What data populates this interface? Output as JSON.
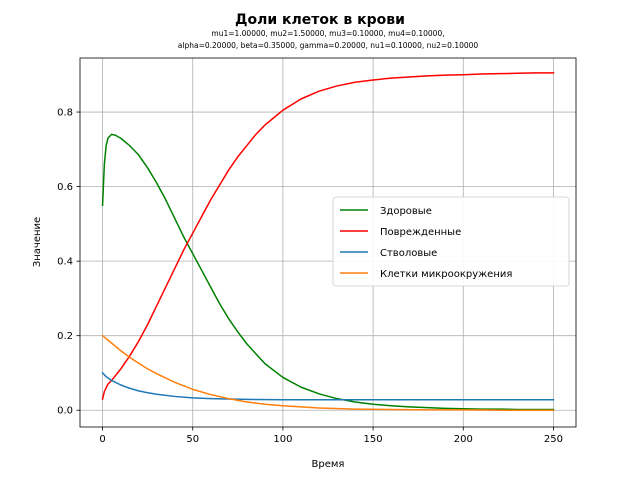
{
  "chart_data": {
    "type": "line",
    "title": "Доли клеток в крови",
    "subtitle_lines": [
      "mu1=1.00000, mu2=1.50000, mu3=0.10000, mu4=0.10000,",
      "alpha=0.20000, beta=0.35000, gamma=0.20000, nu1=0.10000, nu2=0.10000"
    ],
    "xlabel": "Время",
    "ylabel": "Значение",
    "xlim": [
      -12.5,
      262.5
    ],
    "ylim": [
      -0.045,
      0.945
    ],
    "xticks": [
      0,
      50,
      100,
      150,
      200,
      250
    ],
    "yticks": [
      0.0,
      0.2,
      0.4,
      0.6,
      0.8
    ],
    "xtick_labels": [
      "0",
      "50",
      "100",
      "150",
      "200",
      "250"
    ],
    "ytick_labels": [
      "0.0",
      "0.2",
      "0.4",
      "0.6",
      "0.8"
    ],
    "grid": true,
    "legend_position": "center-right",
    "series": [
      {
        "name": "Здоровые",
        "color": "#008000",
        "x": [
          0,
          1,
          2,
          3,
          5,
          7,
          10,
          15,
          20,
          25,
          30,
          35,
          40,
          45,
          50,
          55,
          60,
          65,
          70,
          75,
          80,
          90,
          100,
          110,
          120,
          130,
          140,
          150,
          160,
          170,
          180,
          190,
          200,
          210,
          220,
          230,
          240,
          250
        ],
        "y": [
          0.55,
          0.66,
          0.71,
          0.73,
          0.74,
          0.738,
          0.73,
          0.71,
          0.685,
          0.65,
          0.61,
          0.565,
          0.515,
          0.465,
          0.42,
          0.375,
          0.33,
          0.285,
          0.245,
          0.21,
          0.178,
          0.125,
          0.088,
          0.062,
          0.044,
          0.031,
          0.022,
          0.016,
          0.012,
          0.009,
          0.007,
          0.005,
          0.004,
          0.003,
          0.003,
          0.002,
          0.002,
          0.002
        ]
      },
      {
        "name": "Поврежденные",
        "color": "#ff0000",
        "x": [
          0,
          1,
          2,
          3,
          5,
          10,
          15,
          20,
          25,
          30,
          35,
          40,
          45,
          50,
          55,
          60,
          65,
          70,
          75,
          80,
          85,
          90,
          95,
          100,
          110,
          120,
          130,
          140,
          150,
          160,
          170,
          180,
          190,
          200,
          210,
          220,
          230,
          240,
          250
        ],
        "y": [
          0.03,
          0.05,
          0.06,
          0.07,
          0.08,
          0.11,
          0.145,
          0.185,
          0.23,
          0.28,
          0.33,
          0.38,
          0.43,
          0.475,
          0.52,
          0.565,
          0.605,
          0.645,
          0.68,
          0.71,
          0.74,
          0.765,
          0.785,
          0.805,
          0.835,
          0.856,
          0.87,
          0.88,
          0.886,
          0.891,
          0.894,
          0.897,
          0.899,
          0.9,
          0.902,
          0.903,
          0.904,
          0.905,
          0.905
        ]
      },
      {
        "name": "Стволовые",
        "color": "#1f77b4",
        "x": [
          0,
          2,
          5,
          10,
          15,
          20,
          25,
          30,
          40,
          50,
          60,
          70,
          80,
          100,
          120,
          150,
          200,
          250
        ],
        "y": [
          0.1,
          0.09,
          0.08,
          0.068,
          0.059,
          0.052,
          0.047,
          0.043,
          0.037,
          0.033,
          0.031,
          0.03,
          0.029,
          0.028,
          0.028,
          0.028,
          0.028,
          0.028
        ]
      },
      {
        "name": "Клетки микроокружения",
        "color": "#ff7f0e",
        "x": [
          0,
          5,
          10,
          15,
          20,
          25,
          30,
          40,
          50,
          60,
          70,
          80,
          90,
          100,
          120,
          140,
          160,
          180,
          200,
          225,
          250
        ],
        "y": [
          0.2,
          0.18,
          0.16,
          0.142,
          0.126,
          0.111,
          0.098,
          0.075,
          0.056,
          0.042,
          0.031,
          0.022,
          0.016,
          0.012,
          0.006,
          0.003,
          0.002,
          0.001,
          0.001,
          0.0,
          0.0
        ]
      }
    ]
  }
}
